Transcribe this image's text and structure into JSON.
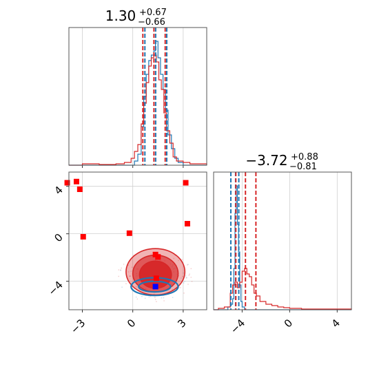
{
  "chart_data": {
    "type": "corner",
    "colors": {
      "red": "#d62728",
      "blue": "#1f77b4",
      "square_red": "#ff0000",
      "square_blue": "#0000ff",
      "grid": "#cfcfcf"
    },
    "param1_range": [
      -3.8,
      4.4
    ],
    "param2_range": [
      -6.4,
      5.2
    ],
    "titles": [
      {
        "median": "1.30",
        "plus": "+0.67",
        "minus": "−0.66"
      },
      {
        "median": "−3.72",
        "plus": "+0.88",
        "minus": "−0.81"
      }
    ],
    "ticks_param1": [
      -3,
      0,
      3
    ],
    "ticks_param2": [
      -4,
      0,
      4
    ],
    "tick_labels_param1": [
      "−3",
      "0",
      "3"
    ],
    "tick_labels_param2": [
      "−4",
      "0",
      "4"
    ],
    "quantiles_param1": {
      "red": [
        0.64,
        1.3,
        1.97
      ],
      "blue": [
        0.66,
        1.3,
        1.96
      ]
    },
    "quantiles_param2": {
      "red": [
        -4.53,
        -3.72,
        -2.84
      ],
      "blue": [
        -4.95,
        -4.55,
        -4.28
      ]
    },
    "hist_param1": {
      "red": [
        [
          -3.8,
          0
        ],
        [
          -3.0,
          0.01
        ],
        [
          -2.0,
          0.005
        ],
        [
          -1.0,
          0.01
        ],
        [
          -0.5,
          0.02
        ],
        [
          -0.1,
          0.05
        ],
        [
          0.1,
          0.1
        ],
        [
          0.3,
          0.15
        ],
        [
          0.5,
          0.3
        ],
        [
          0.65,
          0.45
        ],
        [
          0.8,
          0.6
        ],
        [
          0.95,
          0.72
        ],
        [
          1.1,
          0.78
        ],
        [
          1.25,
          0.8
        ],
        [
          1.4,
          0.75
        ],
        [
          1.55,
          0.62
        ],
        [
          1.7,
          0.55
        ],
        [
          1.85,
          0.38
        ],
        [
          2.0,
          0.25
        ],
        [
          2.2,
          0.16
        ],
        [
          2.4,
          0.06
        ],
        [
          2.6,
          0.03
        ],
        [
          3.0,
          0.02
        ],
        [
          3.4,
          0.01
        ],
        [
          4.4,
          0
        ]
      ],
      "blue": [
        [
          -3.8,
          0
        ],
        [
          -0.2,
          0
        ],
        [
          0.1,
          0.03
        ],
        [
          0.3,
          0.08
        ],
        [
          0.5,
          0.28
        ],
        [
          0.65,
          0.5
        ],
        [
          0.8,
          0.66
        ],
        [
          0.95,
          0.76
        ],
        [
          1.1,
          0.8
        ],
        [
          1.25,
          0.83
        ],
        [
          1.35,
          0.9
        ],
        [
          1.5,
          0.78
        ],
        [
          1.65,
          0.66
        ],
        [
          1.8,
          0.55
        ],
        [
          1.95,
          0.4
        ],
        [
          2.1,
          0.22
        ],
        [
          2.3,
          0.12
        ],
        [
          2.5,
          0.05
        ],
        [
          2.7,
          0.02
        ],
        [
          3.0,
          0
        ],
        [
          4.4,
          0
        ]
      ]
    },
    "hist_param2": {
      "red": [
        [
          -6.4,
          0
        ],
        [
          -6.0,
          0.01
        ],
        [
          -5.5,
          0.02
        ],
        [
          -5.0,
          0.12
        ],
        [
          -4.8,
          0.18
        ],
        [
          -4.6,
          0.2
        ],
        [
          -4.4,
          0.16
        ],
        [
          -4.2,
          0.2
        ],
        [
          -4.0,
          0.28
        ],
        [
          -3.8,
          0.3
        ],
        [
          -3.6,
          0.26
        ],
        [
          -3.4,
          0.24
        ],
        [
          -3.2,
          0.18
        ],
        [
          -3.0,
          0.12
        ],
        [
          -2.8,
          0.1
        ],
        [
          -2.5,
          0.06
        ],
        [
          -2.0,
          0.04
        ],
        [
          -1.5,
          0.03
        ],
        [
          -1.0,
          0.02
        ],
        [
          -0.5,
          0.015
        ],
        [
          0.0,
          0.01
        ],
        [
          1.0,
          0.005
        ],
        [
          5.2,
          0
        ]
      ],
      "blue": [
        [
          -6.4,
          0
        ],
        [
          -5.5,
          0
        ],
        [
          -5.2,
          0.02
        ],
        [
          -5.0,
          0.04
        ],
        [
          -4.8,
          0.08
        ],
        [
          -4.7,
          0.3
        ],
        [
          -4.6,
          0.7
        ],
        [
          -4.5,
          0.9
        ],
        [
          -4.4,
          0.62
        ],
        [
          -4.3,
          0.42
        ],
        [
          -4.2,
          0.18
        ],
        [
          -4.1,
          0.06
        ],
        [
          -4.0,
          0.02
        ],
        [
          -3.8,
          0
        ],
        [
          5.2,
          0
        ]
      ]
    },
    "scatter_squares": {
      "red": [
        [
          -3.9,
          4.3
        ],
        [
          -3.35,
          4.4
        ],
        [
          -3.15,
          3.75
        ],
        [
          1.35,
          -1.75
        ],
        [
          1.5,
          -1.95
        ],
        [
          1.4,
          -3.75
        ],
        [
          3.15,
          4.3
        ],
        [
          3.25,
          0.85
        ],
        [
          -0.2,
          0.05
        ],
        [
          -2.95,
          -0.25
        ]
      ],
      "blue": [
        [
          1.35,
          -4.45
        ]
      ]
    },
    "contours_red": [
      {
        "center": [
          1.35,
          -3.2
        ],
        "rx": 1.75,
        "ry": 1.95,
        "opacity": 0.35
      },
      {
        "center": [
          1.35,
          -3.35
        ],
        "rx": 1.35,
        "ry": 1.55,
        "opacity": 0.65
      },
      {
        "center": [
          1.35,
          -3.45
        ],
        "rx": 0.95,
        "ry": 1.15,
        "opacity": 0.95
      }
    ],
    "contours_blue": [
      {
        "center": [
          1.3,
          -4.45
        ],
        "rx": 1.4,
        "ry": 0.75
      },
      {
        "center": [
          1.3,
          -4.45
        ],
        "rx": 0.95,
        "ry": 0.45
      }
    ]
  }
}
